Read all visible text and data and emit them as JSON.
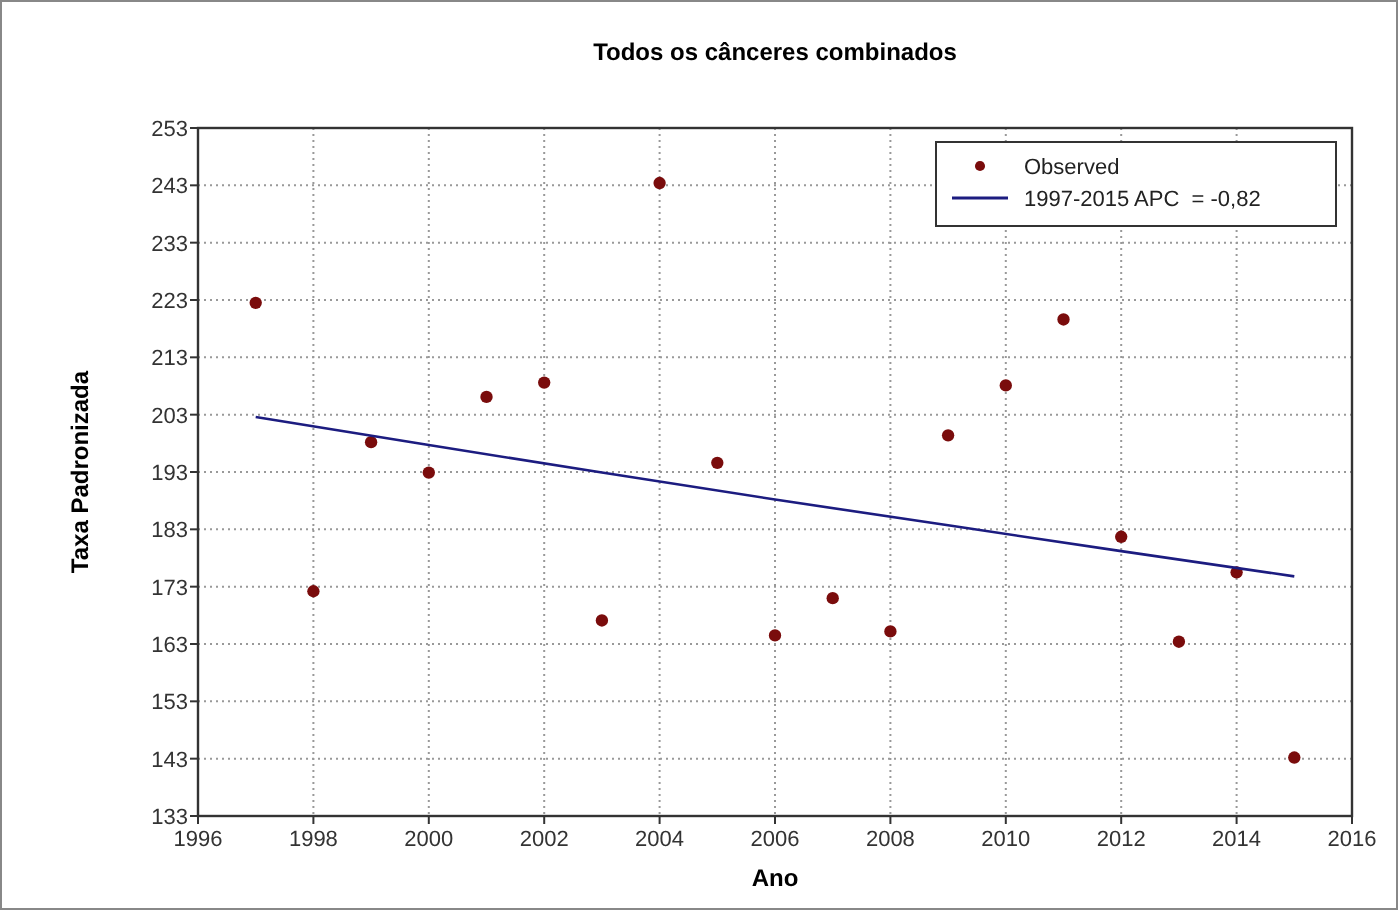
{
  "chart_data": {
    "type": "scatter",
    "title": "Todos os cânceres combinados",
    "xlabel": "Ano",
    "ylabel": "Taxa Padronizada",
    "xlim": [
      1996,
      2016
    ],
    "xticks": [
      1996,
      1998,
      2000,
      2002,
      2004,
      2006,
      2008,
      2010,
      2012,
      2014,
      2016
    ],
    "ylim": [
      133,
      253
    ],
    "yticks": [
      133,
      143,
      153,
      163,
      173,
      183,
      193,
      203,
      213,
      223,
      233,
      243,
      253
    ],
    "grid": true,
    "legend": "top right",
    "series": [
      {
        "name": "Observed",
        "marker": "circle",
        "color": "#7a0c0c",
        "x": [
          1997,
          1998,
          1999,
          2000,
          2001,
          2002,
          2003,
          2004,
          2005,
          2006,
          2007,
          2008,
          2009,
          2010,
          2011,
          2012,
          2013,
          2014,
          2015
        ],
        "values": [
          222.5,
          172.2,
          198.2,
          192.9,
          206.1,
          208.6,
          167.1,
          243.4,
          194.6,
          164.5,
          171,
          165.2,
          199.4,
          208.1,
          219.6,
          181.7,
          163.4,
          175.5,
          143.2
        ]
      },
      {
        "name": "1997-2015 APC  = -0,82",
        "type": "line",
        "marker": "none",
        "line_style": "solid",
        "color": "#1c1c80",
        "x": [
          1997,
          2000,
          2003,
          2006,
          2009,
          2012,
          2015
        ],
        "values": [
          202.6,
          197.7,
          192.9,
          188.2,
          183.7,
          179.2,
          174.8
        ]
      }
    ]
  }
}
